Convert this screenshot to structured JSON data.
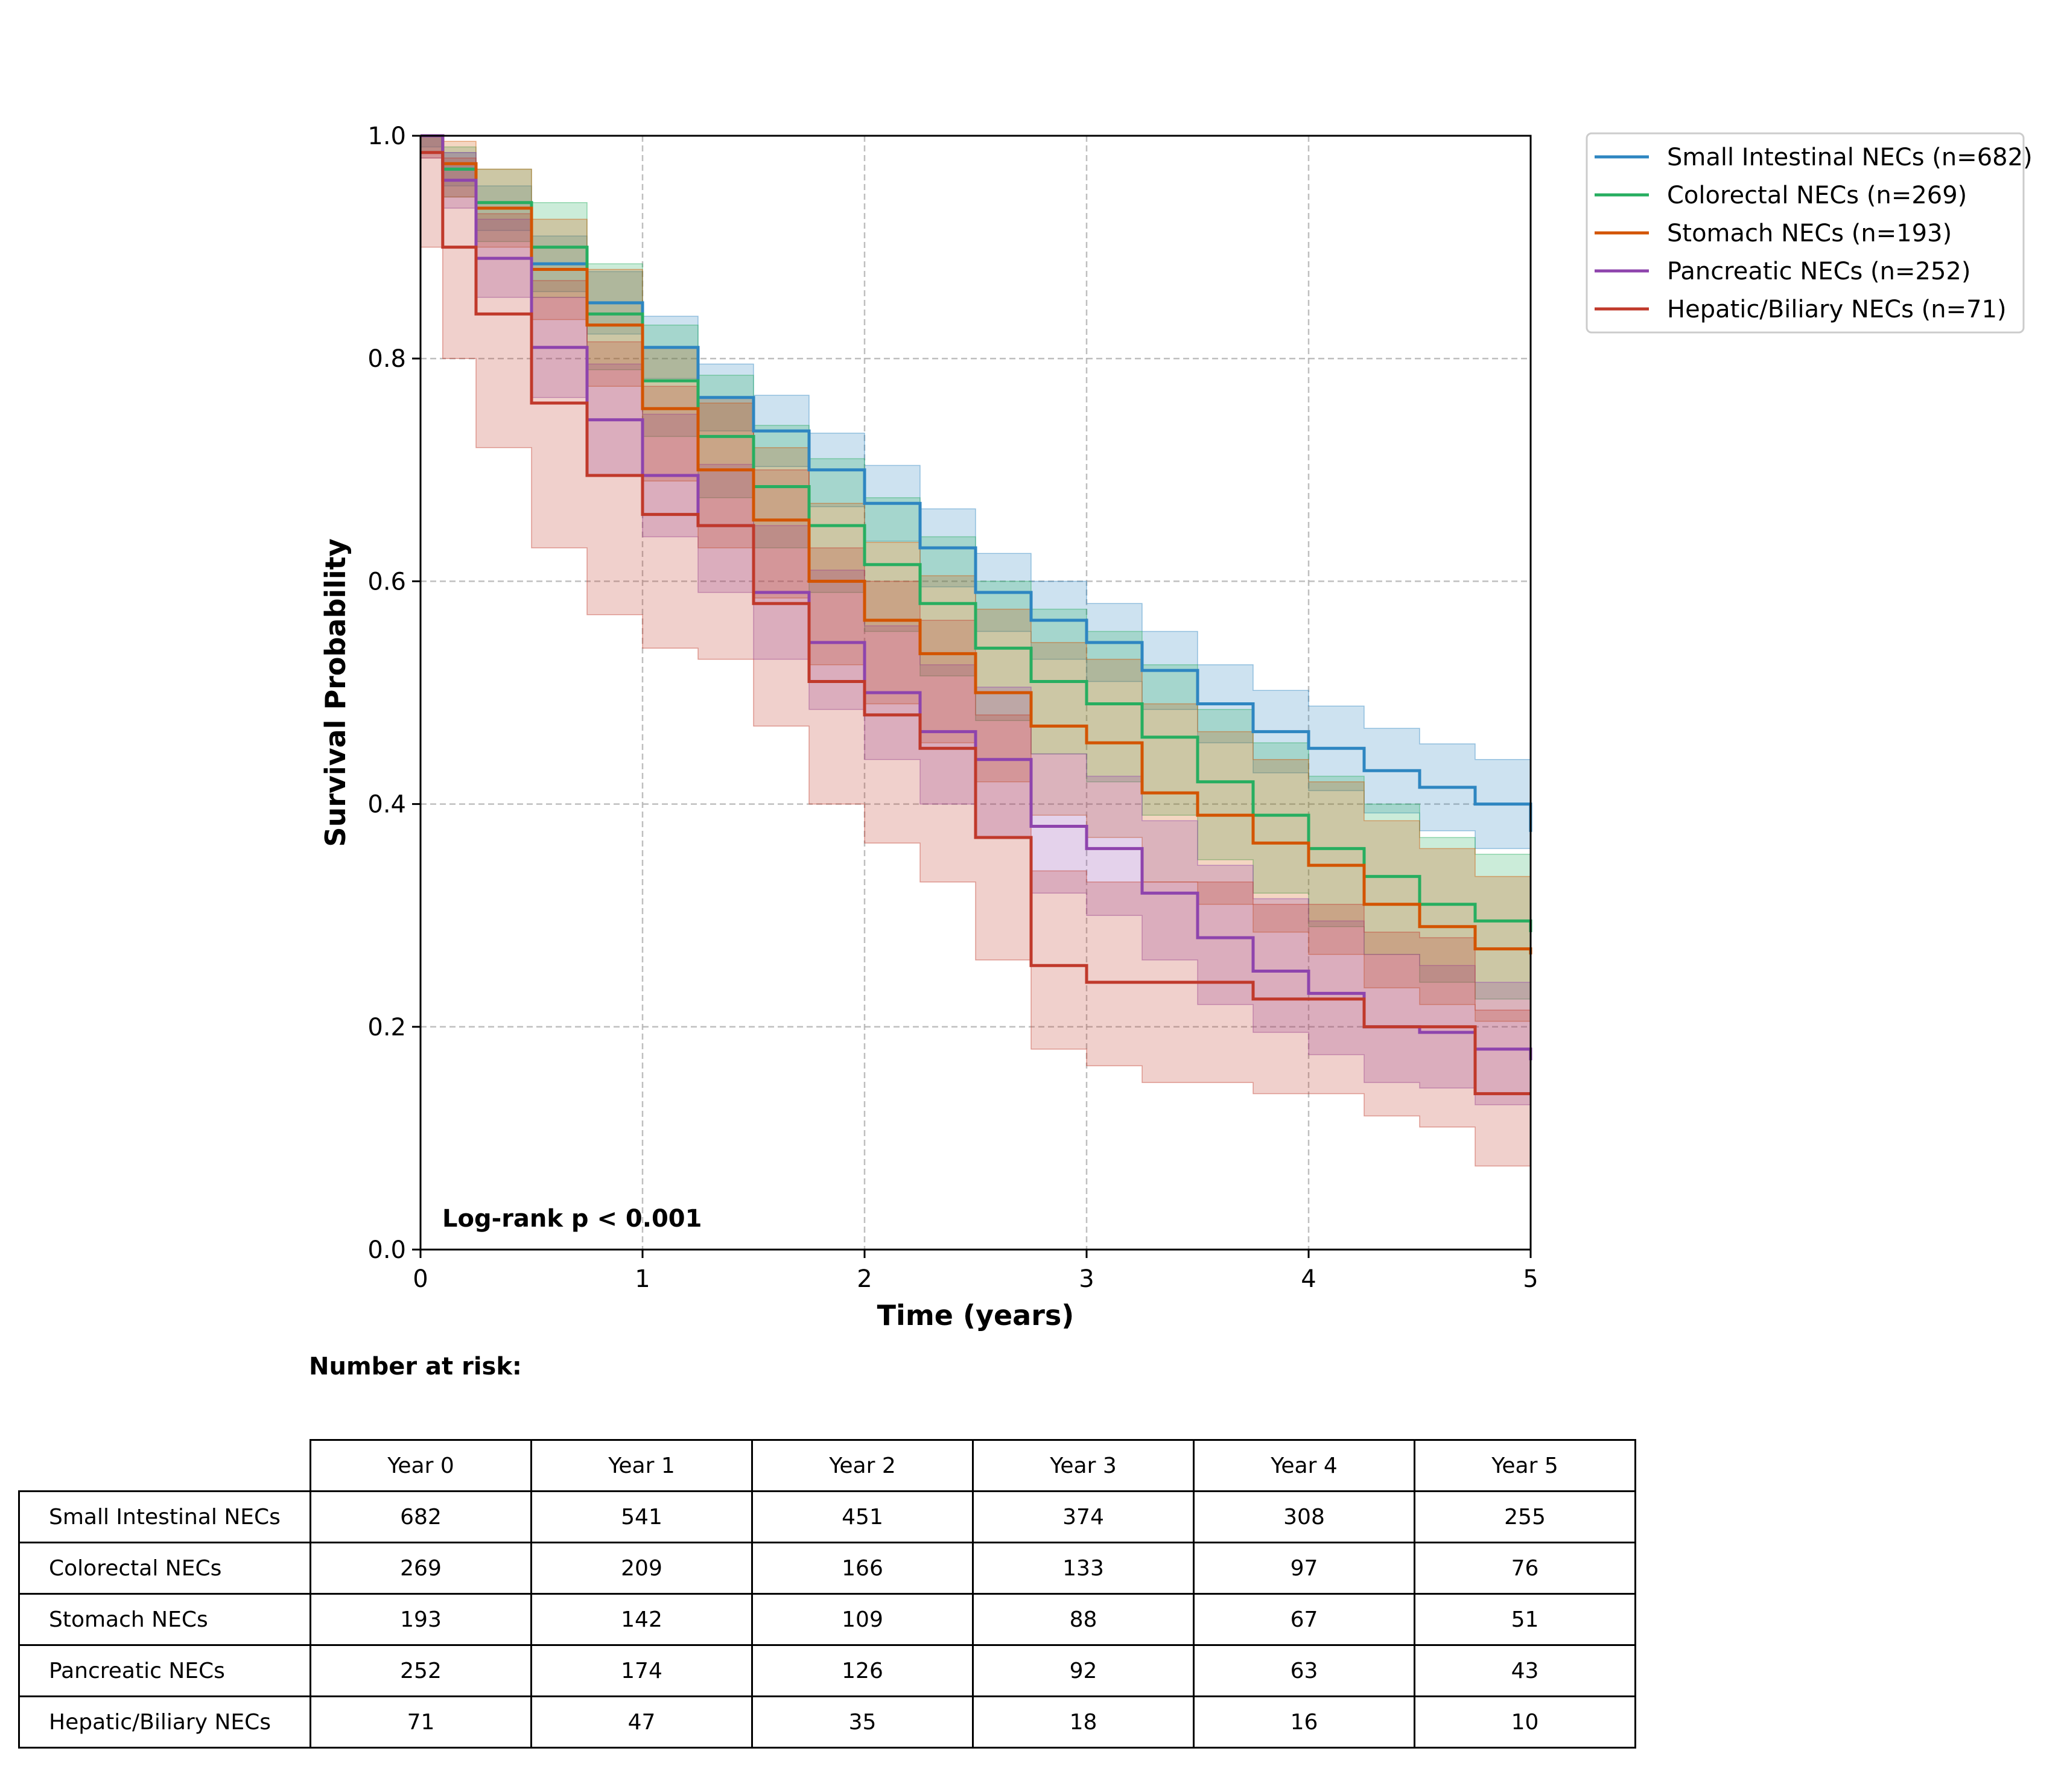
{
  "chart_data": {
    "type": "line",
    "subtype": "kaplan-meier",
    "xlabel": "Time (years)",
    "ylabel": "Survival Probability",
    "xlim": [
      0,
      5
    ],
    "ylim": [
      0,
      1
    ],
    "xticks": [
      "0",
      "1",
      "2",
      "3",
      "4",
      "5"
    ],
    "yticks": [
      "0.0",
      "0.2",
      "0.4",
      "0.6",
      "0.8",
      "1.0"
    ],
    "grid": true,
    "legend_position": "outside top-right",
    "annotation": "Log-rank p < 0.001",
    "series": [
      {
        "name": "Small Intestinal NECs (n=682)",
        "color": "#2e86c1",
        "points": [
          [
            0,
            1.0
          ],
          [
            0.1,
            0.97
          ],
          [
            0.25,
            0.935
          ],
          [
            0.5,
            0.885
          ],
          [
            0.75,
            0.85
          ],
          [
            1,
            0.81
          ],
          [
            1.25,
            0.765
          ],
          [
            1.5,
            0.735
          ],
          [
            1.75,
            0.7
          ],
          [
            2,
            0.67
          ],
          [
            2.25,
            0.63
          ],
          [
            2.5,
            0.59
          ],
          [
            2.75,
            0.565
          ],
          [
            3,
            0.545
          ],
          [
            3.25,
            0.52
          ],
          [
            3.5,
            0.49
          ],
          [
            3.75,
            0.465
          ],
          [
            4,
            0.45
          ],
          [
            4.25,
            0.43
          ],
          [
            4.5,
            0.415
          ],
          [
            4.75,
            0.4
          ],
          [
            5,
            0.375
          ]
        ],
        "ci_lower": [
          0.99,
          0.955,
          0.915,
          0.86,
          0.822,
          0.782,
          0.735,
          0.703,
          0.667,
          0.636,
          0.595,
          0.555,
          0.53,
          0.51,
          0.485,
          0.455,
          0.428,
          0.412,
          0.392,
          0.376,
          0.36,
          0.335
        ],
        "ci_upper": [
          1.0,
          0.985,
          0.955,
          0.91,
          0.878,
          0.838,
          0.795,
          0.767,
          0.733,
          0.704,
          0.665,
          0.625,
          0.6,
          0.58,
          0.555,
          0.525,
          0.502,
          0.488,
          0.468,
          0.454,
          0.44,
          0.41
        ]
      },
      {
        "name": "Colorectal NECs (n=269)",
        "color": "#27ae60",
        "points": [
          [
            0,
            1.0
          ],
          [
            0.1,
            0.97
          ],
          [
            0.25,
            0.94
          ],
          [
            0.5,
            0.9
          ],
          [
            0.75,
            0.84
          ],
          [
            1,
            0.78
          ],
          [
            1.25,
            0.73
          ],
          [
            1.5,
            0.685
          ],
          [
            1.75,
            0.65
          ],
          [
            2,
            0.615
          ],
          [
            2.25,
            0.58
          ],
          [
            2.5,
            0.54
          ],
          [
            2.75,
            0.51
          ],
          [
            3,
            0.49
          ],
          [
            3.25,
            0.46
          ],
          [
            3.5,
            0.42
          ],
          [
            3.75,
            0.39
          ],
          [
            4,
            0.36
          ],
          [
            4.25,
            0.335
          ],
          [
            4.5,
            0.31
          ],
          [
            4.75,
            0.295
          ],
          [
            5,
            0.285
          ]
        ],
        "ci_lower": [
          0.985,
          0.945,
          0.905,
          0.855,
          0.79,
          0.73,
          0.675,
          0.63,
          0.59,
          0.555,
          0.515,
          0.475,
          0.445,
          0.42,
          0.39,
          0.35,
          0.32,
          0.29,
          0.265,
          0.24,
          0.225,
          0.22
        ],
        "ci_upper": [
          1.0,
          0.99,
          0.97,
          0.94,
          0.885,
          0.83,
          0.785,
          0.74,
          0.71,
          0.675,
          0.64,
          0.6,
          0.575,
          0.555,
          0.525,
          0.485,
          0.455,
          0.425,
          0.4,
          0.37,
          0.355,
          0.34
        ]
      },
      {
        "name": "Stomach NECs (n=193)",
        "color": "#d35400",
        "points": [
          [
            0,
            1.0
          ],
          [
            0.1,
            0.975
          ],
          [
            0.25,
            0.935
          ],
          [
            0.5,
            0.88
          ],
          [
            0.75,
            0.83
          ],
          [
            1,
            0.755
          ],
          [
            1.25,
            0.7
          ],
          [
            1.5,
            0.655
          ],
          [
            1.75,
            0.6
          ],
          [
            2,
            0.565
          ],
          [
            2.25,
            0.535
          ],
          [
            2.5,
            0.5
          ],
          [
            2.75,
            0.47
          ],
          [
            3,
            0.455
          ],
          [
            3.25,
            0.41
          ],
          [
            3.5,
            0.39
          ],
          [
            3.75,
            0.365
          ],
          [
            4,
            0.345
          ],
          [
            4.25,
            0.31
          ],
          [
            4.5,
            0.29
          ],
          [
            4.75,
            0.27
          ],
          [
            5,
            0.265
          ]
        ],
        "ci_lower": [
          0.98,
          0.945,
          0.9,
          0.835,
          0.775,
          0.69,
          0.63,
          0.585,
          0.525,
          0.49,
          0.455,
          0.42,
          0.39,
          0.37,
          0.33,
          0.31,
          0.285,
          0.265,
          0.235,
          0.22,
          0.205,
          0.2
        ],
        "ci_upper": [
          1.0,
          0.995,
          0.97,
          0.925,
          0.88,
          0.81,
          0.76,
          0.72,
          0.67,
          0.635,
          0.605,
          0.575,
          0.545,
          0.53,
          0.49,
          0.465,
          0.44,
          0.42,
          0.385,
          0.36,
          0.335,
          0.33
        ]
      },
      {
        "name": "Pancreatic NECs (n=252)",
        "color": "#8e44ad",
        "points": [
          [
            0,
            1.0
          ],
          [
            0.1,
            0.96
          ],
          [
            0.25,
            0.89
          ],
          [
            0.5,
            0.81
          ],
          [
            0.75,
            0.745
          ],
          [
            1,
            0.695
          ],
          [
            1.25,
            0.65
          ],
          [
            1.5,
            0.59
          ],
          [
            1.75,
            0.545
          ],
          [
            2,
            0.5
          ],
          [
            2.25,
            0.465
          ],
          [
            2.5,
            0.44
          ],
          [
            2.75,
            0.38
          ],
          [
            3,
            0.36
          ],
          [
            3.25,
            0.32
          ],
          [
            3.5,
            0.28
          ],
          [
            3.75,
            0.25
          ],
          [
            4,
            0.23
          ],
          [
            4.25,
            0.2
          ],
          [
            4.5,
            0.195
          ],
          [
            4.75,
            0.18
          ],
          [
            5,
            0.17
          ]
        ],
        "ci_lower": [
          0.98,
          0.935,
          0.855,
          0.765,
          0.695,
          0.64,
          0.59,
          0.53,
          0.485,
          0.44,
          0.4,
          0.37,
          0.32,
          0.3,
          0.26,
          0.22,
          0.195,
          0.175,
          0.15,
          0.145,
          0.13,
          0.125
        ],
        "ci_upper": [
          1.0,
          0.985,
          0.925,
          0.855,
          0.795,
          0.75,
          0.705,
          0.65,
          0.61,
          0.56,
          0.525,
          0.505,
          0.445,
          0.425,
          0.385,
          0.345,
          0.315,
          0.295,
          0.265,
          0.255,
          0.24,
          0.225
        ]
      },
      {
        "name": "Hepatic/Biliary NECs (n=71)",
        "color": "#c0392b",
        "points": [
          [
            0,
            0.985
          ],
          [
            0.1,
            0.9
          ],
          [
            0.25,
            0.84
          ],
          [
            0.5,
            0.76
          ],
          [
            0.75,
            0.695
          ],
          [
            1,
            0.66
          ],
          [
            1.25,
            0.65
          ],
          [
            1.5,
            0.58
          ],
          [
            1.75,
            0.51
          ],
          [
            2,
            0.48
          ],
          [
            2.25,
            0.45
          ],
          [
            2.5,
            0.37
          ],
          [
            2.75,
            0.255
          ],
          [
            3,
            0.24
          ],
          [
            3.25,
            0.24
          ],
          [
            3.5,
            0.24
          ],
          [
            3.75,
            0.225
          ],
          [
            4,
            0.225
          ],
          [
            4.25,
            0.2
          ],
          [
            4.5,
            0.2
          ],
          [
            4.75,
            0.14
          ],
          [
            5,
            0.14
          ]
        ],
        "ci_lower": [
          0.9,
          0.8,
          0.72,
          0.63,
          0.57,
          0.54,
          0.53,
          0.47,
          0.4,
          0.365,
          0.33,
          0.26,
          0.18,
          0.165,
          0.15,
          0.15,
          0.14,
          0.14,
          0.12,
          0.11,
          0.075,
          0.07
        ],
        "ci_upper": [
          1.0,
          0.98,
          0.93,
          0.87,
          0.815,
          0.775,
          0.765,
          0.7,
          0.63,
          0.6,
          0.565,
          0.48,
          0.34,
          0.33,
          0.33,
          0.33,
          0.31,
          0.31,
          0.285,
          0.28,
          0.215,
          0.21
        ]
      }
    ]
  },
  "risk_table": {
    "title": "Number at risk:",
    "columns": [
      "Year 0",
      "Year 1",
      "Year 2",
      "Year 3",
      "Year 4",
      "Year 5"
    ],
    "rows": [
      {
        "label": "Small Intestinal NECs",
        "values": [
          "682",
          "541",
          "451",
          "374",
          "308",
          "255"
        ]
      },
      {
        "label": "Colorectal NECs",
        "values": [
          "269",
          "209",
          "166",
          "133",
          "97",
          "76"
        ]
      },
      {
        "label": "Stomach NECs",
        "values": [
          "193",
          "142",
          "109",
          "88",
          "67",
          "51"
        ]
      },
      {
        "label": "Pancreatic NECs",
        "values": [
          "252",
          "174",
          "126",
          "92",
          "63",
          "43"
        ]
      },
      {
        "label": "Hepatic/Biliary NECs",
        "values": [
          "71",
          "47",
          "35",
          "18",
          "16",
          "10"
        ]
      }
    ]
  }
}
